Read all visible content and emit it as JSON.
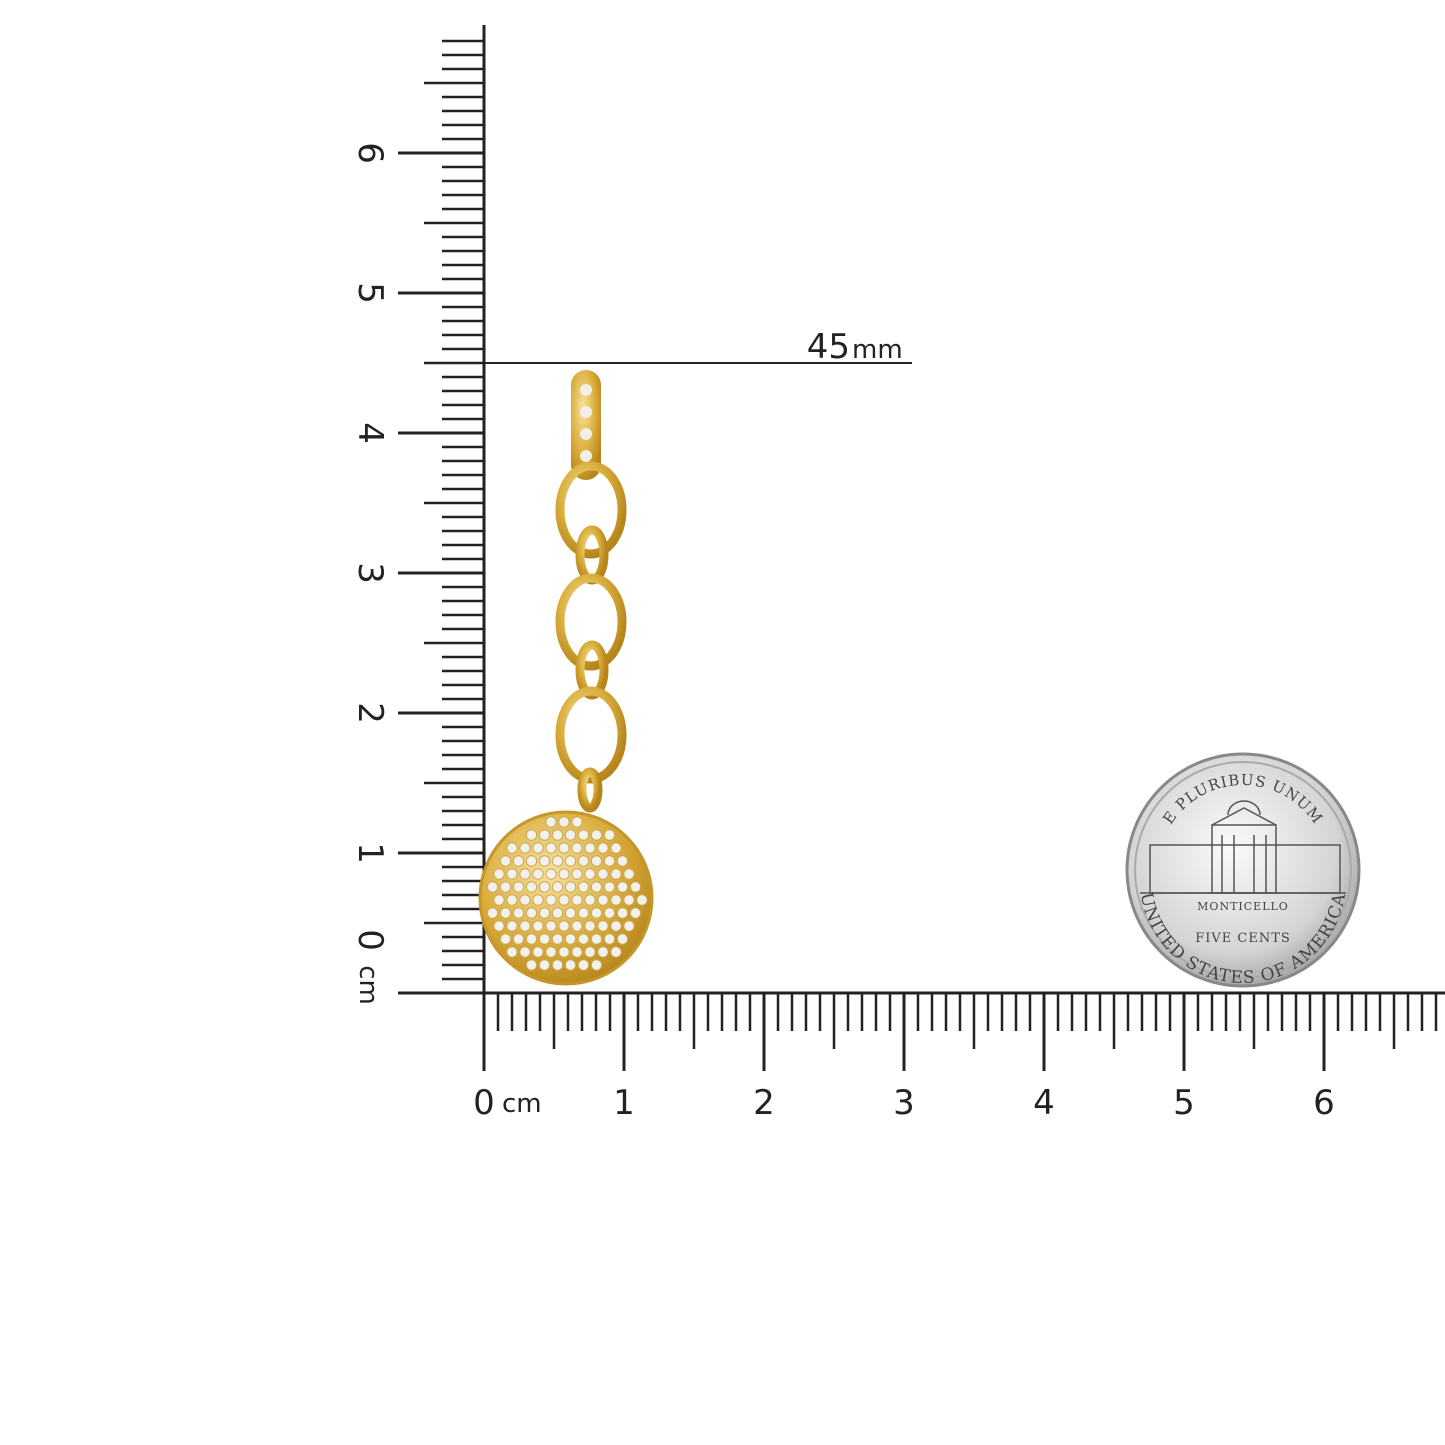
{
  "horizontal_ruler": {
    "labels": [
      "0",
      "1",
      "2",
      "3",
      "4",
      "5",
      "6"
    ],
    "unit": "cm"
  },
  "vertical_ruler": {
    "labels": [
      "0",
      "1",
      "2",
      "3",
      "4",
      "5",
      "6"
    ],
    "unit": "cm"
  },
  "measurement": {
    "value": "45",
    "unit": "mm"
  },
  "coin": {
    "top": "E PLURIBUS UNUM",
    "building": "MONTICELLO",
    "denomination": "FIVE CENTS",
    "bottom": "UNITED STATES OF AMERICA"
  }
}
